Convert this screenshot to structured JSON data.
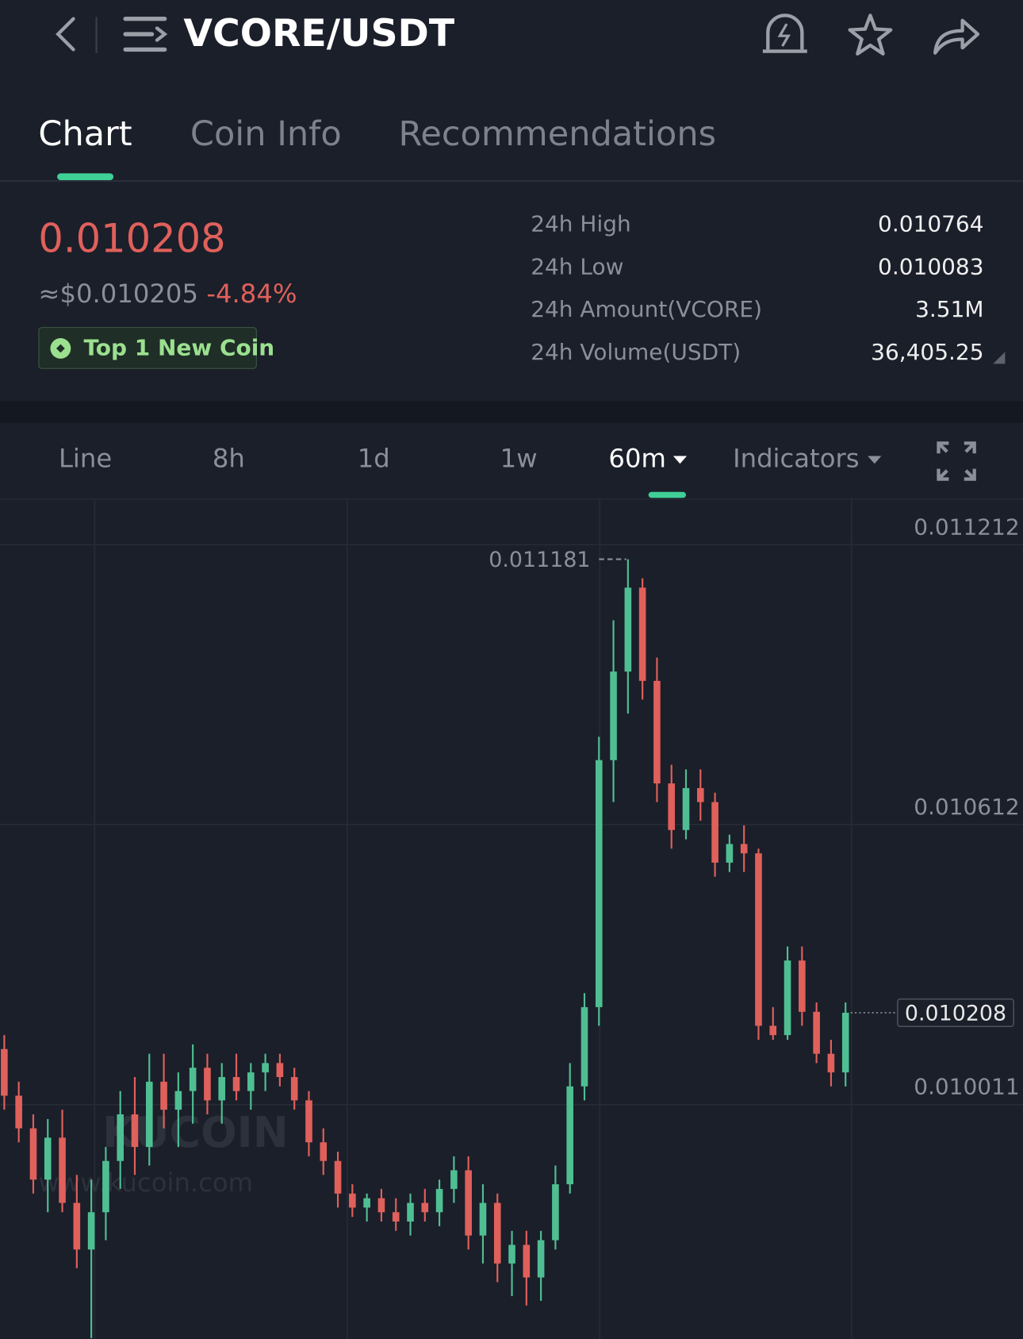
{
  "header": {
    "title": "VCORE/USDT"
  },
  "tabs": [
    "Chart",
    "Coin Info",
    "Recommendations"
  ],
  "price": {
    "last": "0.010208",
    "usd": "≈$0.010205",
    "change": "-4.84%",
    "badge": "Top 1 New Coin"
  },
  "stats": [
    {
      "label": "24h High",
      "value": "0.010764"
    },
    {
      "label": "24h Low",
      "value": "0.010083"
    },
    {
      "label": "24h Amount(VCORE)",
      "value": "3.51M"
    },
    {
      "label": "24h Volume(USDT)",
      "value": "36,405.25"
    }
  ],
  "toolbar": [
    "Line",
    "8h",
    "1d",
    "1w",
    "60m",
    "Indicators"
  ],
  "watermark": {
    "brand": "KUCOIN",
    "url": "www.kucoin.com"
  },
  "chart_data": {
    "type": "candlestick",
    "ylim": [
      0.009508,
      0.011309
    ],
    "yticks": [
      0.011212,
      0.010612,
      0.010011
    ],
    "grid": true,
    "up_color": "#4fbf93",
    "down_color": "#e0605b",
    "candles": {
      "open": [
        0.01013,
        0.01003,
        0.00996,
        0.00985,
        0.00994,
        0.0098,
        0.0097,
        0.00978,
        0.00989,
        0.00999,
        0.00992,
        0.01006,
        0.01,
        0.01004,
        0.01009,
        0.01002,
        0.01007,
        0.01004,
        0.01008,
        0.0101,
        0.01007,
        0.01002,
        0.00993,
        0.00989,
        0.00982,
        0.00979,
        0.00981,
        0.00978,
        0.00976,
        0.0098,
        0.00978,
        0.00983,
        0.00987,
        0.00973,
        0.0098,
        0.00967,
        0.00971,
        0.00964,
        0.00972,
        0.00984,
        0.01005,
        0.01022,
        0.01075,
        0.01094,
        0.01112,
        0.01092,
        0.0107,
        0.0106,
        0.01069,
        0.01066,
        0.01053,
        0.01057,
        0.01055,
        0.01018,
        0.01016,
        0.01032,
        0.01021,
        0.01012,
        0.01008
      ],
      "high": [
        0.01016,
        0.01006,
        0.00999,
        0.00998,
        0.01,
        0.00986,
        0.00985,
        0.00992,
        0.01004,
        0.01007,
        0.01012,
        0.01012,
        0.01008,
        0.01014,
        0.01012,
        0.0101,
        0.01012,
        0.0101,
        0.01012,
        0.01012,
        0.01009,
        0.01004,
        0.00996,
        0.00991,
        0.00984,
        0.00982,
        0.00983,
        0.00981,
        0.00982,
        0.00983,
        0.00985,
        0.0099,
        0.0099,
        0.00984,
        0.00982,
        0.00974,
        0.00974,
        0.00974,
        0.00988,
        0.0101,
        0.01025,
        0.0108,
        0.01105,
        0.011181,
        0.01114,
        0.01097,
        0.01074,
        0.01073,
        0.01073,
        0.01068,
        0.01059,
        0.01061,
        0.01056,
        0.01022,
        0.01035,
        0.01035,
        0.01023,
        0.01015,
        0.01023
      ],
      "low": [
        0.01,
        0.00993,
        0.00982,
        0.00978,
        0.00978,
        0.00966,
        0.00951,
        0.00972,
        0.00983,
        0.00986,
        0.00988,
        0.00996,
        0.00992,
        0.00997,
        0.00999,
        0.00997,
        0.01002,
        0.01,
        0.01004,
        0.01005,
        0.01,
        0.0099,
        0.00986,
        0.00979,
        0.00977,
        0.00976,
        0.00976,
        0.00974,
        0.00973,
        0.00976,
        0.00975,
        0.0098,
        0.0097,
        0.00967,
        0.00963,
        0.0096,
        0.00958,
        0.00959,
        0.0097,
        0.00982,
        0.01002,
        0.01018,
        0.01066,
        0.01085,
        0.01088,
        0.01066,
        0.01056,
        0.01058,
        0.01062,
        0.0105,
        0.01051,
        0.01051,
        0.01015,
        0.01015,
        0.01015,
        0.01018,
        0.0101,
        0.01005,
        0.01005
      ],
      "close": [
        0.01003,
        0.00996,
        0.00985,
        0.00994,
        0.0098,
        0.0097,
        0.00978,
        0.00989,
        0.00999,
        0.00992,
        0.01006,
        0.01,
        0.01004,
        0.01009,
        0.01002,
        0.01007,
        0.01004,
        0.01008,
        0.0101,
        0.01007,
        0.01002,
        0.00993,
        0.00989,
        0.00982,
        0.00979,
        0.00981,
        0.00978,
        0.00976,
        0.0098,
        0.00978,
        0.00983,
        0.00987,
        0.00973,
        0.0098,
        0.00967,
        0.00971,
        0.00964,
        0.00972,
        0.00984,
        0.01005,
        0.01022,
        0.01075,
        0.01094,
        0.01112,
        0.01092,
        0.0107,
        0.0106,
        0.01069,
        0.01066,
        0.01053,
        0.01057,
        0.01055,
        0.01018,
        0.01016,
        0.01032,
        0.01021,
        0.01012,
        0.01008,
        0.010208
      ]
    }
  }
}
